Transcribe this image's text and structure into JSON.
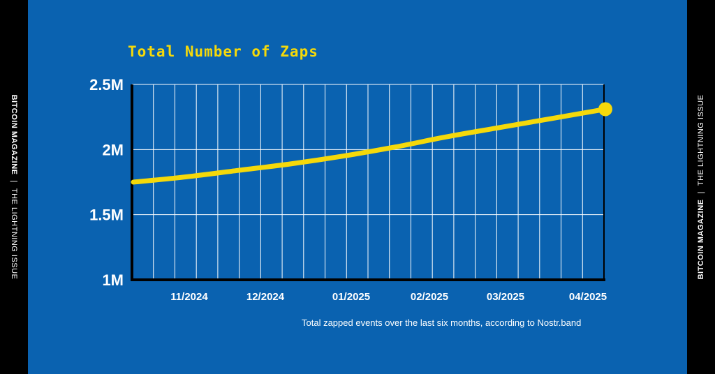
{
  "side_left": {
    "brand": "BITCOIN MAGAZINE",
    "separator": "|",
    "issue": "THE LIGHTNING ISSUE"
  },
  "side_right": {
    "brand": "BITCOIN MAGAZINE",
    "separator": "|",
    "issue": "THE LIGHTNING ISSUE"
  },
  "caption": "Total zapped events over the last six months, according to Nostr.band",
  "colors": {
    "background": "#0a62b0",
    "line": "#f5d90a",
    "title": "#f5d90a",
    "grid": "#ffffff",
    "border": "#000000"
  },
  "chart_data": {
    "type": "line",
    "title": "Total Number of Zaps",
    "xlabel": "",
    "ylabel": "",
    "ylim": [
      1000000,
      2500000
    ],
    "y_ticks": [
      {
        "value": 2500000,
        "label": "2.5M"
      },
      {
        "value": 2000000,
        "label": "2M"
      },
      {
        "value": 1500000,
        "label": "1.5M"
      },
      {
        "value": 1000000,
        "label": "1M"
      }
    ],
    "x_ticks": [
      "11/2024",
      "12/2024",
      "01/2025",
      "02/2025",
      "03/2025",
      "04/2025"
    ],
    "grid": true,
    "series": [
      {
        "values": [
          1750000,
          1790000,
          1840000,
          1890000,
          1950000,
          2020000,
          2100000,
          2170000,
          2240000,
          2310000
        ]
      }
    ]
  }
}
